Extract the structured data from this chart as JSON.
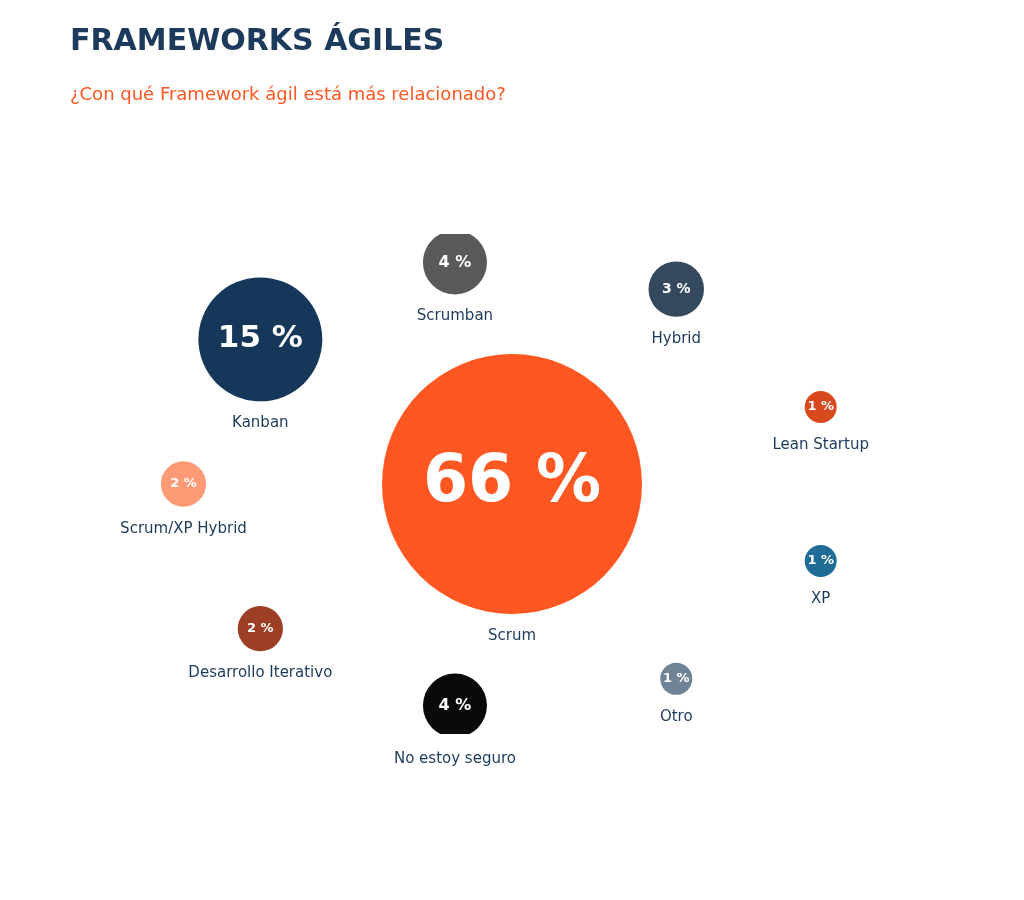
{
  "chart_data": {
    "type": "other",
    "title": "FRAMEWORKS ÁGILES",
    "subtitle": "¿Con qué Framework ágil está más relacionado?",
    "categories": [
      "Scrum",
      "Kanban",
      "Scrumban",
      "Hybrid",
      "Lean Startup",
      "XP",
      "Otro",
      "No estoy seguro",
      "Desarrollo Iterativo",
      "Scrum/XP Hybrid"
    ],
    "values": [
      66,
      15,
      4,
      3,
      1,
      1,
      1,
      4,
      2,
      2
    ],
    "value_labels": [
      "66 %",
      "15 %",
      "4 %",
      "3 %",
      "1 %",
      "1 %",
      "1 %",
      "4 %",
      "2 %",
      "2 %"
    ],
    "colors": [
      "#ff5722",
      "#14375a",
      "#58595b",
      "#34495e",
      "#d9491e",
      "#1f6c96",
      "#6f8396",
      "#0a0a0a",
      "#9c3f24",
      "#ff9a76"
    ],
    "legend": false
  }
}
